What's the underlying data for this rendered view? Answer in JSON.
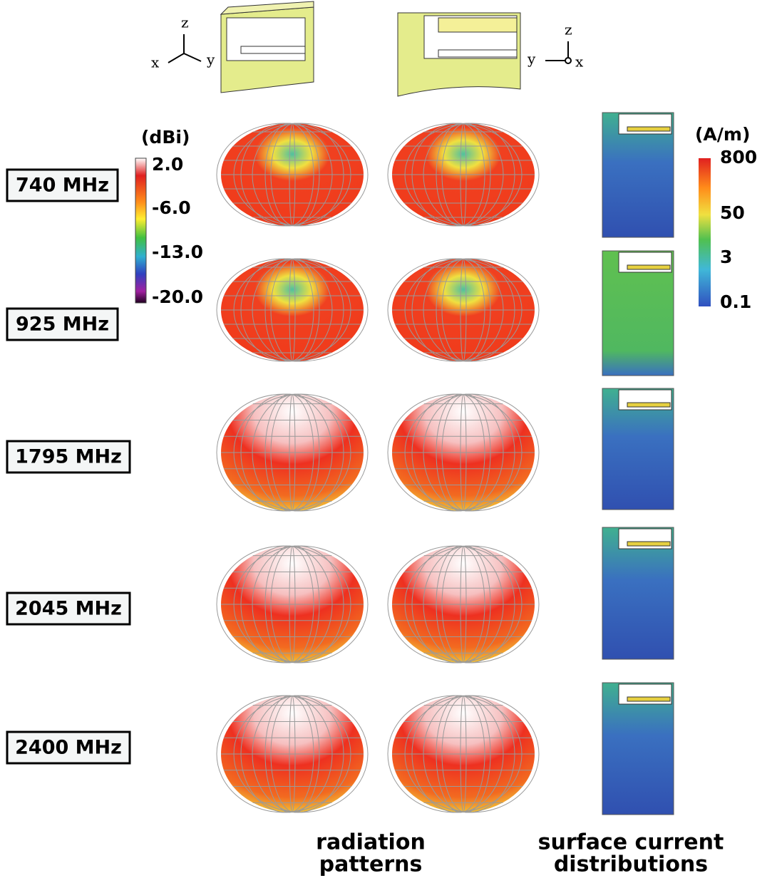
{
  "axes_left": {
    "z": "z",
    "x": "x",
    "y": "y"
  },
  "axes_right": {
    "z": "z",
    "y": "y",
    "x": "x"
  },
  "frequencies": [
    "740 MHz",
    "925 MHz",
    "1795 MHz",
    "2045 MHz",
    "2400 MHz"
  ],
  "gain_scale": {
    "unit": "(dBi)",
    "labels": [
      "2.0",
      "-6.0",
      "-13.0",
      "-20.0"
    ]
  },
  "current_scale": {
    "unit": "(A/m)",
    "labels": [
      "800",
      "50",
      "3",
      "0.1"
    ]
  },
  "captions": [
    [
      "radiation",
      "patterns"
    ],
    [
      "surface current",
      "distributions"
    ]
  ]
}
